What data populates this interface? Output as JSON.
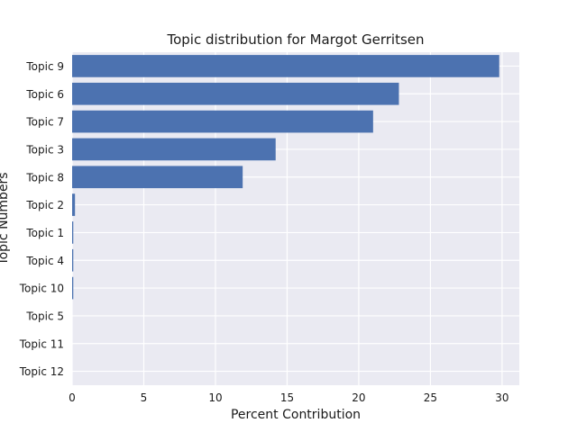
{
  "chart_data": {
    "type": "bar",
    "orientation": "horizontal",
    "title": "Topic distribution for Margot Gerritsen",
    "xlabel": "Percent Contribution",
    "ylabel": "Topic Numbers",
    "categories": [
      "Topic 9",
      "Topic 6",
      "Topic 7",
      "Topic 3",
      "Topic 8",
      "Topic 2",
      "Topic 1",
      "Topic 4",
      "Topic 10",
      "Topic 5",
      "Topic 11",
      "Topic 12"
    ],
    "values": [
      29.8,
      22.8,
      21.0,
      14.2,
      11.9,
      0.2,
      0.08,
      0.08,
      0.08,
      0.0,
      0.0,
      0.0
    ],
    "xlim": [
      0,
      31.2
    ],
    "xticks": [
      0,
      5,
      10,
      15,
      20,
      25,
      30
    ],
    "xtick_labels": [
      "0",
      "5",
      "10",
      "15",
      "20",
      "25",
      "30"
    ],
    "grid": true,
    "colors": {
      "bar": "#4c72b0",
      "background": "#eaeaf2",
      "grid": "#ffffff"
    }
  }
}
